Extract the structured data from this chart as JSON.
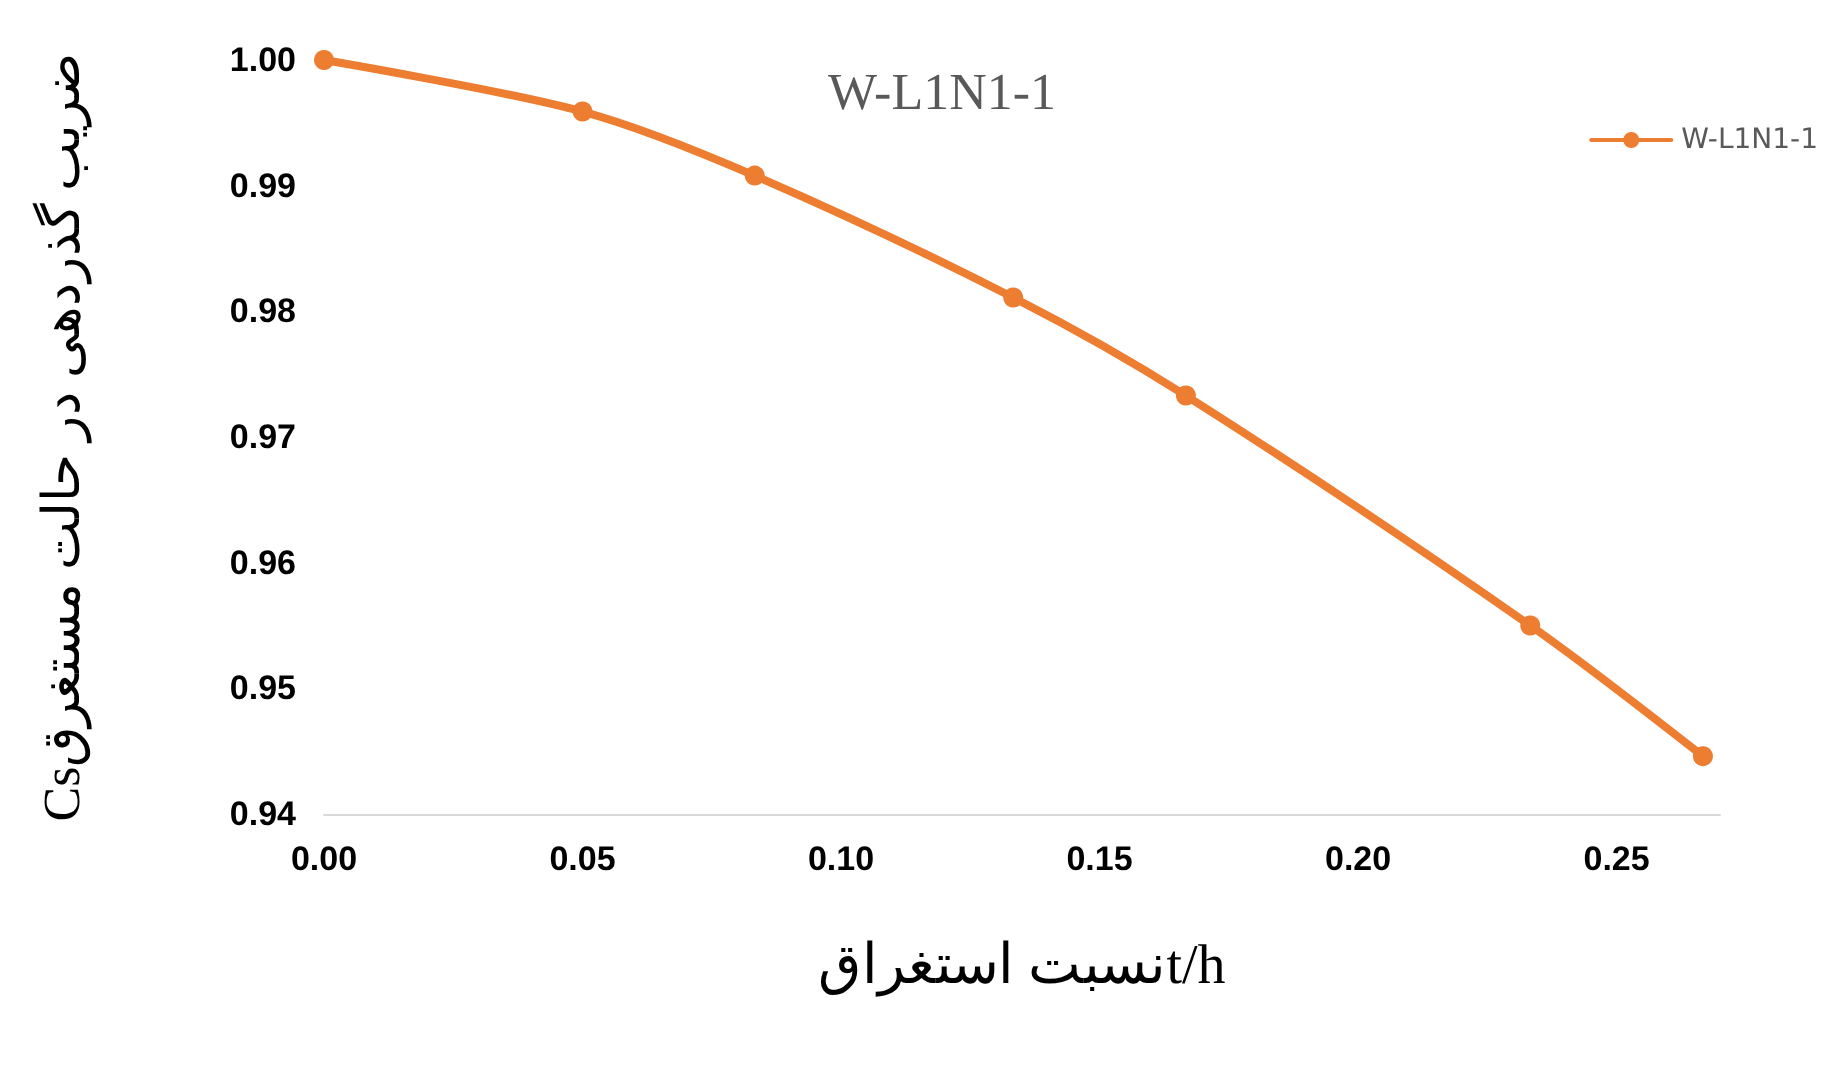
{
  "chart_data": {
    "type": "line",
    "title": "W-L1N1-1",
    "xlabel": "نسبت استغراقt/h",
    "ylabel": "Csضریب گذردهی در حالت مستغرق",
    "x": [
      0,
      0.05,
      0.0833,
      0.1333,
      0.1667,
      0.2333,
      0.2667
    ],
    "series": [
      {
        "name": "W-L1N1-1",
        "color": "#ed7d31",
        "values": [
          1.0,
          0.9959,
          0.9908,
          0.9811,
          0.9733,
          0.955,
          0.9446
        ]
      }
    ],
    "xlim": [
      0,
      0.27
    ],
    "xticks": [
      {
        "value": 0,
        "label": "0.00"
      },
      0.05,
      {
        "value": 0.1,
        "label": "0.10"
      },
      0.15,
      {
        "value": 0.2,
        "label": "0.20"
      },
      0.25
    ],
    "ylim": [
      0.94,
      1.0
    ],
    "yticks": [
      0.94,
      0.95,
      0.96,
      0.97,
      0.98,
      0.99,
      {
        "value": 1.0,
        "label": "1.00"
      }
    ],
    "grid": false,
    "legend": "top right",
    "marker": "circle",
    "line_style": "solid"
  }
}
